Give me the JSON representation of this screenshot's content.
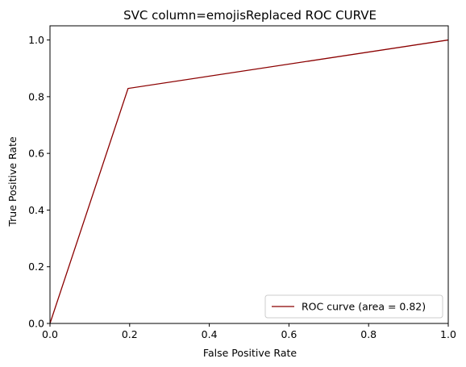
{
  "chart_data": {
    "type": "line",
    "title": "SVC column=emojisReplaced ROC CURVE",
    "xlabel": "False Positive Rate",
    "ylabel": "True Positive Rate",
    "xlim": [
      0.0,
      1.0
    ],
    "ylim": [
      0.0,
      1.05
    ],
    "xticks": [
      "0.0",
      "0.2",
      "0.4",
      "0.6",
      "0.8",
      "1.0"
    ],
    "yticks": [
      "0.0",
      "0.2",
      "0.4",
      "0.6",
      "0.8",
      "1.0"
    ],
    "grid": false,
    "legend_position": "lower-right",
    "series": [
      {
        "name": "ROC curve (area = 0.82)",
        "color": "#8b0000",
        "x": [
          0.0,
          0.196,
          1.0
        ],
        "y": [
          0.0,
          0.829,
          1.0
        ]
      }
    ]
  }
}
